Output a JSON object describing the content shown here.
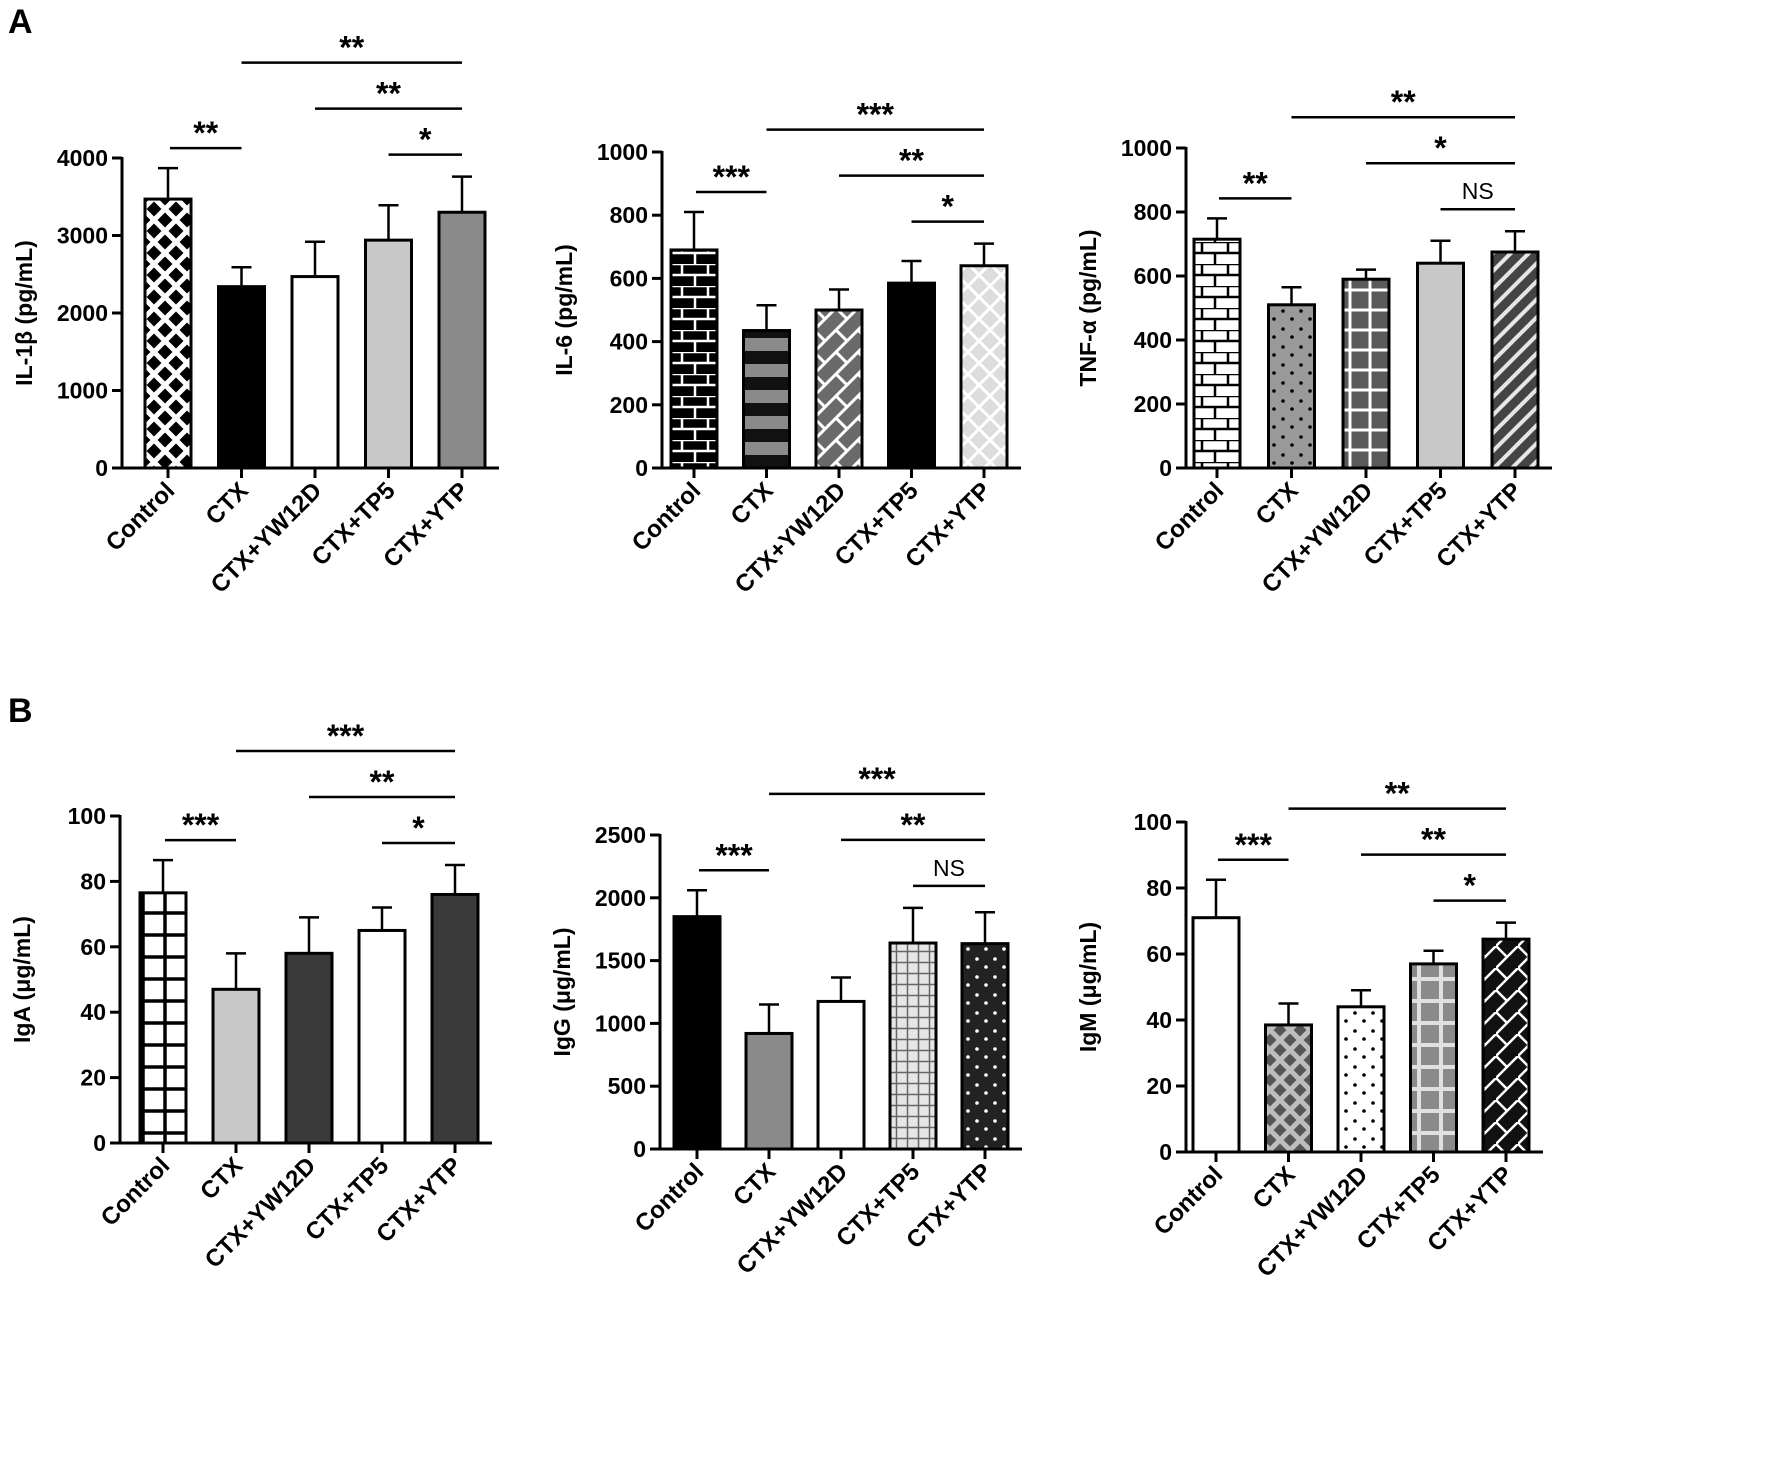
{
  "panels": [
    {
      "id": "panel-A",
      "label": "A",
      "chart_indices": [
        0,
        1,
        2
      ]
    },
    {
      "id": "panel-B",
      "label": "B",
      "chart_indices": [
        3,
        4,
        5
      ]
    }
  ],
  "colors": {
    "ink": "#000000",
    "light_gray": "#c8c8c8",
    "mid_gray": "#8a8a8a",
    "dark_gray": "#3a3a3a",
    "white": "#ffffff"
  },
  "chart_data": [
    {
      "id": "il1b",
      "panel": "A",
      "type": "bar",
      "title": "",
      "xlabel": "",
      "ylabel": "IL-1β (pg/mL)",
      "categories": [
        "Control",
        "CTX",
        "CTX+YW12D",
        "CTX+TP5",
        "CTX+YTP"
      ],
      "values": [
        3470,
        2340,
        2470,
        2940,
        3300
      ],
      "errors": [
        400,
        250,
        450,
        450,
        460
      ],
      "patterns": [
        "crosshatch-black",
        "solid-black",
        "solid-white",
        "solid-lightgray",
        "solid-midgray"
      ],
      "ylim": [
        0,
        4000
      ],
      "yticks": [
        "0",
        "1000",
        "2000",
        "3000",
        "4000"
      ],
      "significance": [
        {
          "from": 0,
          "to": 1,
          "label": "**"
        },
        {
          "from": 1,
          "to": 4,
          "label": "**"
        },
        {
          "from": 2,
          "to": 4,
          "label": "**"
        },
        {
          "from": 3,
          "to": 4,
          "label": "*"
        }
      ]
    },
    {
      "id": "il6",
      "panel": "A",
      "type": "bar",
      "title": "",
      "xlabel": "",
      "ylabel": "IL-6 (pg/mL)",
      "categories": [
        "Control",
        "CTX",
        "CTX+YW12D",
        "CTX+TP5",
        "CTX+YTP"
      ],
      "values": [
        690,
        435,
        500,
        585,
        640
      ],
      "errors": [
        120,
        80,
        65,
        70,
        70
      ],
      "patterns": [
        "brick-black",
        "stripes-gray",
        "hatch-darkgray",
        "solid-black",
        "diamond-lightgray"
      ],
      "ylim": [
        0,
        1000
      ],
      "yticks": [
        "0",
        "200",
        "400",
        "600",
        "800",
        "1000"
      ],
      "significance": [
        {
          "from": 0,
          "to": 1,
          "label": "***"
        },
        {
          "from": 1,
          "to": 4,
          "label": "***"
        },
        {
          "from": 2,
          "to": 4,
          "label": "**"
        },
        {
          "from": 3,
          "to": 4,
          "label": "*"
        }
      ]
    },
    {
      "id": "tnfa",
      "panel": "A",
      "type": "bar",
      "title": "",
      "xlabel": "",
      "ylabel": "TNF-α (pg/mL)",
      "categories": [
        "Control",
        "CTX",
        "CTX+YW12D",
        "CTX+TP5",
        "CTX+YTP"
      ],
      "values": [
        715,
        510,
        590,
        640,
        675
      ],
      "errors": [
        65,
        55,
        30,
        70,
        65
      ],
      "patterns": [
        "brick-white",
        "dots-gray",
        "grid-darkgray",
        "solid-lightgray",
        "diagonal-darkgray"
      ],
      "ylim": [
        0,
        1000
      ],
      "yticks": [
        "0",
        "200",
        "400",
        "600",
        "800",
        "1000"
      ],
      "significance": [
        {
          "from": 0,
          "to": 1,
          "label": "**"
        },
        {
          "from": 1,
          "to": 4,
          "label": "**"
        },
        {
          "from": 2,
          "to": 4,
          "label": "*"
        },
        {
          "from": 3,
          "to": 4,
          "label": "NS"
        }
      ]
    },
    {
      "id": "iga",
      "panel": "B",
      "type": "bar",
      "title": "",
      "xlabel": "",
      "ylabel": "IgA (μg/mL)",
      "categories": [
        "Control",
        "CTX",
        "CTX+YW12D",
        "CTX+TP5",
        "CTX+YTP"
      ],
      "values": [
        76.5,
        47,
        58,
        65,
        76
      ],
      "errors": [
        10,
        11,
        11,
        7,
        9
      ],
      "patterns": [
        "grid-white",
        "solid-lightgray",
        "solid-darkgray",
        "solid-white",
        "solid-darkgray"
      ],
      "ylim": [
        0,
        100
      ],
      "yticks": [
        "0",
        "20",
        "40",
        "60",
        "80",
        "100"
      ],
      "significance": [
        {
          "from": 0,
          "to": 1,
          "label": "***"
        },
        {
          "from": 1,
          "to": 4,
          "label": "***"
        },
        {
          "from": 2,
          "to": 4,
          "label": "**"
        },
        {
          "from": 3,
          "to": 4,
          "label": "*"
        }
      ]
    },
    {
      "id": "igg",
      "panel": "B",
      "type": "bar",
      "title": "",
      "xlabel": "",
      "ylabel": "IgG (μg/mL)",
      "categories": [
        "Control",
        "CTX",
        "CTX+YW12D",
        "CTX+TP5",
        "CTX+YTP"
      ],
      "values": [
        1850,
        920,
        1175,
        1640,
        1635
      ],
      "errors": [
        210,
        230,
        190,
        280,
        250
      ],
      "patterns": [
        "solid-black",
        "solid-midgray",
        "solid-white",
        "fine-grid-lightgray",
        "dots-black"
      ],
      "ylim": [
        0,
        2500
      ],
      "yticks": [
        "0",
        "500",
        "1000",
        "1500",
        "2000",
        "2500"
      ],
      "significance": [
        {
          "from": 0,
          "to": 1,
          "label": "***"
        },
        {
          "from": 1,
          "to": 4,
          "label": "***"
        },
        {
          "from": 2,
          "to": 4,
          "label": "**"
        },
        {
          "from": 3,
          "to": 4,
          "label": "NS"
        }
      ]
    },
    {
      "id": "igm",
      "panel": "B",
      "type": "bar",
      "title": "",
      "xlabel": "",
      "ylabel": "IgM (μg/mL)",
      "categories": [
        "Control",
        "CTX",
        "CTX+YW12D",
        "CTX+TP5",
        "CTX+YTP"
      ],
      "values": [
        71,
        38.5,
        44,
        57,
        64.5
      ],
      "errors": [
        11.5,
        6.5,
        5,
        4,
        5
      ],
      "patterns": [
        "solid-white",
        "crosshatch-gray",
        "dots-white",
        "grid-midgray",
        "diamond-black"
      ],
      "ylim": [
        0,
        100
      ],
      "yticks": [
        "0",
        "20",
        "40",
        "60",
        "80",
        "100"
      ],
      "significance": [
        {
          "from": 0,
          "to": 1,
          "label": "***"
        },
        {
          "from": 1,
          "to": 4,
          "label": "**"
        },
        {
          "from": 2,
          "to": 4,
          "label": "**"
        },
        {
          "from": 3,
          "to": 4,
          "label": "*"
        }
      ]
    }
  ]
}
